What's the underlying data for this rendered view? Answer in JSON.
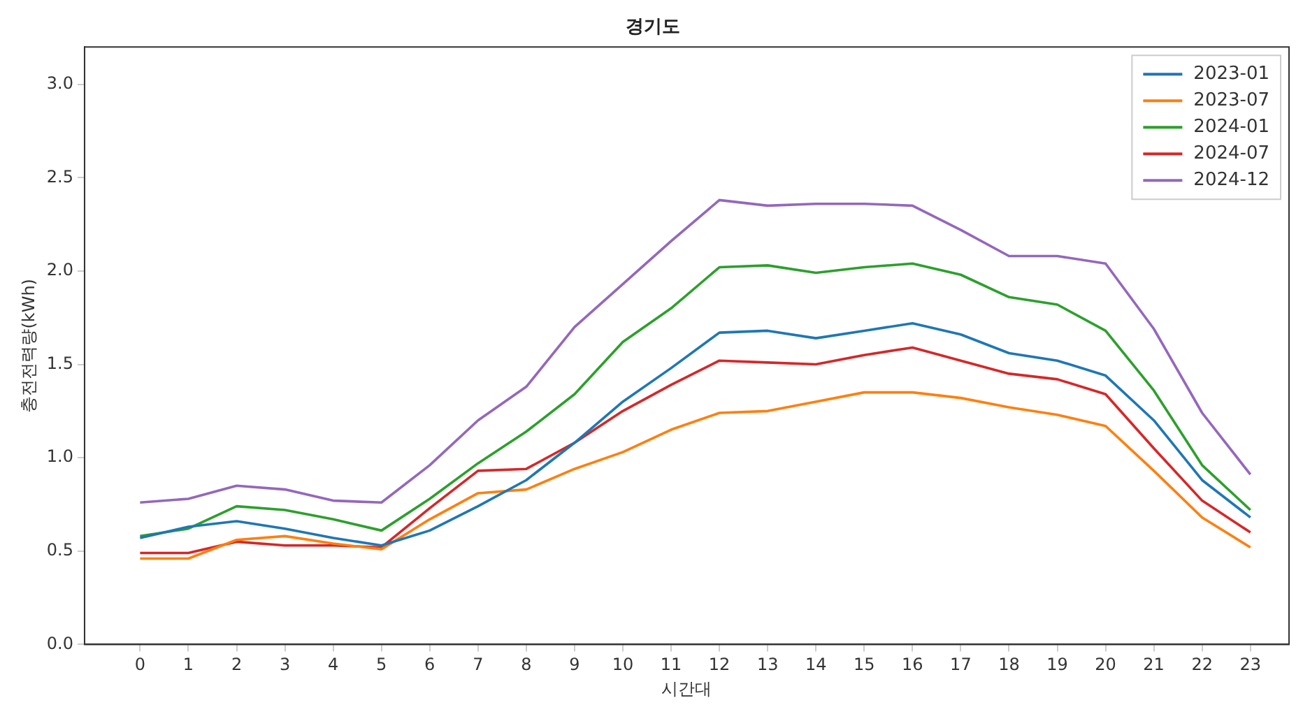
{
  "chart_data": {
    "type": "line",
    "title": "경기도",
    "xlabel": "시간대",
    "ylabel": "충전전력량(kWh)",
    "x": [
      0,
      1,
      2,
      3,
      4,
      5,
      6,
      7,
      8,
      9,
      10,
      11,
      12,
      13,
      14,
      15,
      16,
      17,
      18,
      19,
      20,
      21,
      22,
      23
    ],
    "xlim": [
      -1.15,
      23.8
    ],
    "xticks": [
      0,
      1,
      2,
      3,
      4,
      5,
      6,
      7,
      8,
      9,
      10,
      11,
      12,
      13,
      14,
      15,
      16,
      17,
      18,
      19,
      20,
      21,
      22,
      23
    ],
    "ylim": [
      0,
      3.2
    ],
    "yticks": [
      {
        "value": 0,
        "label": "0.0"
      },
      0.5,
      {
        "value": 1,
        "label": "1.0"
      },
      1.5,
      {
        "value": 2,
        "label": "2.0"
      },
      2.5,
      {
        "value": 3,
        "label": "3.0"
      }
    ],
    "grid": false,
    "legend": "top right",
    "marker": "none",
    "line_style": "solid",
    "series": [
      {
        "name": "2023-01",
        "color": "#1f77b4",
        "values": [
          0.57,
          0.63,
          0.66,
          0.62,
          0.57,
          0.53,
          0.61,
          0.74,
          0.88,
          1.08,
          1.3,
          1.48,
          1.67,
          1.68,
          1.64,
          1.68,
          1.72,
          1.66,
          1.56,
          1.52,
          1.44,
          1.2,
          0.88,
          0.68
        ]
      },
      {
        "name": "2023-07",
        "color": "#ff7f0e",
        "values": [
          0.46,
          0.46,
          0.56,
          0.58,
          0.54,
          0.51,
          0.67,
          0.81,
          0.83,
          0.94,
          1.03,
          1.15,
          1.24,
          1.25,
          1.3,
          1.35,
          1.35,
          1.32,
          1.27,
          1.23,
          1.17,
          0.93,
          0.68,
          0.52
        ]
      },
      {
        "name": "2024-01",
        "color": "#2ca02c",
        "values": [
          0.58,
          0.62,
          0.74,
          0.72,
          0.67,
          0.61,
          0.78,
          0.97,
          1.14,
          1.34,
          1.62,
          1.8,
          2.02,
          2.03,
          1.99,
          2.02,
          2.04,
          1.98,
          1.86,
          1.82,
          1.68,
          1.36,
          0.96,
          0.72
        ]
      },
      {
        "name": "2024-07",
        "color": "#d62728",
        "values": [
          0.49,
          0.49,
          0.55,
          0.53,
          0.53,
          0.52,
          0.73,
          0.93,
          0.94,
          1.08,
          1.25,
          1.39,
          1.52,
          1.51,
          1.5,
          1.55,
          1.59,
          1.52,
          1.45,
          1.42,
          1.34,
          1.05,
          0.77,
          0.6
        ]
      },
      {
        "name": "2024-12",
        "color": "#9467bd",
        "values": [
          0.76,
          0.78,
          0.85,
          0.83,
          0.77,
          0.76,
          0.96,
          1.2,
          1.38,
          1.7,
          1.93,
          2.16,
          2.38,
          2.35,
          2.36,
          2.36,
          2.35,
          2.22,
          2.08,
          2.08,
          2.04,
          1.69,
          1.24,
          0.91
        ]
      }
    ]
  }
}
